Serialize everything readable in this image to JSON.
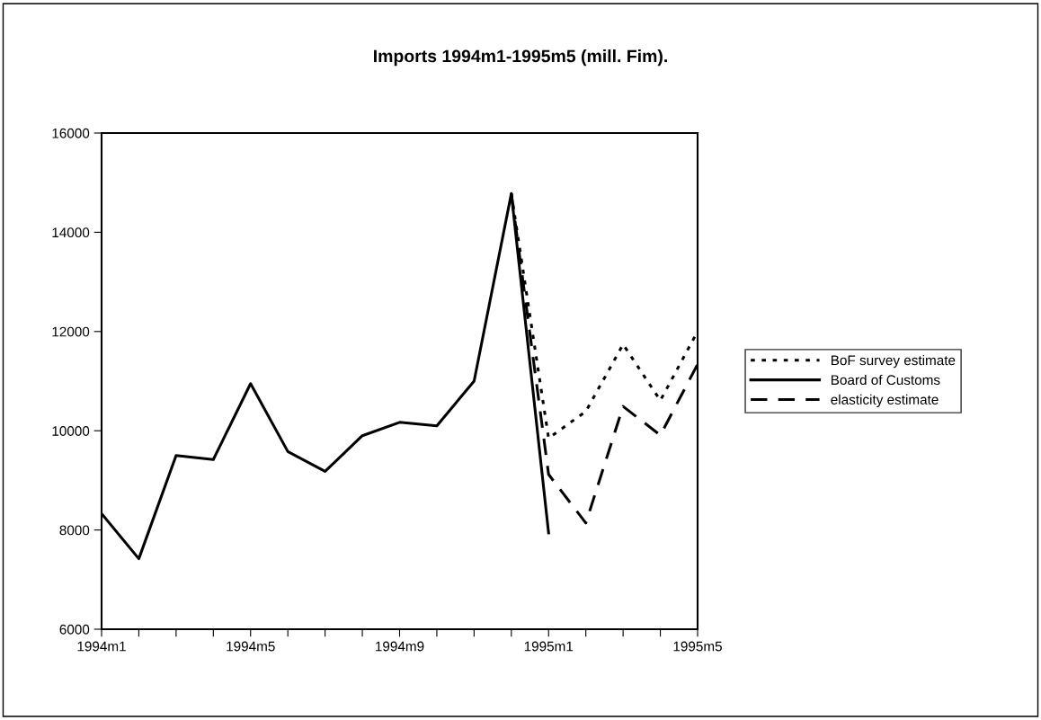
{
  "chart_data": {
    "type": "line",
    "title": "Imports 1994m1-1995m5 (mill. Fim).",
    "categories": [
      "1994m1",
      null,
      null,
      null,
      "1994m5",
      null,
      null,
      null,
      "1994m9",
      null,
      null,
      null,
      "1995m1",
      null,
      null,
      null,
      "1995m5"
    ],
    "series": [
      {
        "name": "BoF survey estimate",
        "color": "#000000",
        "line_style": "dotted",
        "values": [
          null,
          null,
          null,
          null,
          null,
          null,
          null,
          null,
          null,
          null,
          null,
          14780,
          9850,
          10390,
          11740,
          10610,
          12000
        ]
      },
      {
        "name": "Board of Customs",
        "color": "#000000",
        "line_style": "solid",
        "values": [
          8330,
          7420,
          9500,
          9420,
          10950,
          9580,
          9180,
          9900,
          10170,
          10100,
          11000,
          14780,
          7940,
          null,
          null,
          null,
          null
        ]
      },
      {
        "name": "elasticity estimate",
        "color": "#000000",
        "line_style": "dashed",
        "values": [
          null,
          null,
          null,
          null,
          null,
          null,
          null,
          null,
          null,
          null,
          null,
          14780,
          9120,
          8140,
          10490,
          9910,
          11340
        ]
      }
    ],
    "ylim": [
      6000,
      16000
    ],
    "yticks": [
      6000,
      8000,
      10000,
      12000,
      14000,
      16000
    ],
    "grid": false,
    "legend": "right",
    "marker": "none"
  }
}
